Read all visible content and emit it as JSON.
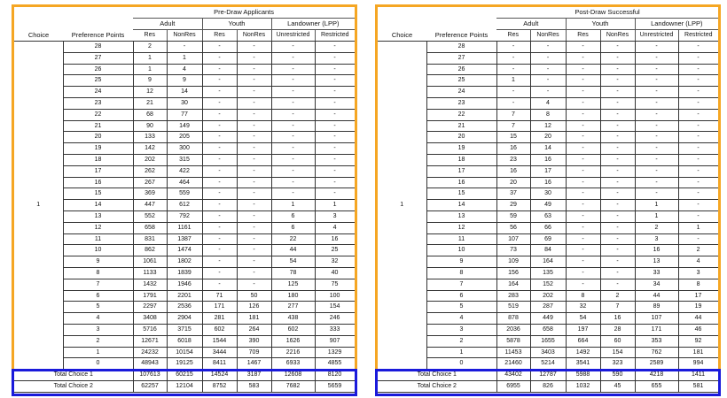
{
  "colors": {
    "frame": "#f5a623",
    "totals_box": "#1a1adb"
  },
  "headers": {
    "choice": "Choice",
    "points": "Preference Points",
    "adult": "Adult",
    "youth": "Youth",
    "landowner": "Landowner (LPP)",
    "res": "Res",
    "nonres": "NonRes",
    "unrestricted": "Unrestricted",
    "restricted": "Restricted"
  },
  "tables": [
    {
      "title": "Pre-Draw Applicants",
      "choice": "1",
      "rows": [
        [
          "28",
          "2",
          "-",
          "-",
          "-",
          "-",
          "-"
        ],
        [
          "27",
          "1",
          "1",
          "-",
          "-",
          "-",
          "-"
        ],
        [
          "26",
          "1",
          "4",
          "-",
          "-",
          "-",
          "-"
        ],
        [
          "25",
          "9",
          "9",
          "-",
          "-",
          "-",
          "-"
        ],
        [
          "24",
          "12",
          "14",
          "-",
          "-",
          "-",
          "-"
        ],
        [
          "23",
          "21",
          "30",
          "-",
          "-",
          "-",
          "-"
        ],
        [
          "22",
          "68",
          "77",
          "-",
          "-",
          "-",
          "-"
        ],
        [
          "21",
          "90",
          "149",
          "-",
          "-",
          "-",
          "-"
        ],
        [
          "20",
          "133",
          "205",
          "-",
          "-",
          "-",
          "-"
        ],
        [
          "19",
          "142",
          "300",
          "-",
          "-",
          "-",
          "-"
        ],
        [
          "18",
          "202",
          "315",
          "-",
          "-",
          "-",
          "-"
        ],
        [
          "17",
          "262",
          "422",
          "-",
          "-",
          "-",
          "-"
        ],
        [
          "16",
          "267",
          "464",
          "-",
          "-",
          "-",
          "-"
        ],
        [
          "15",
          "369",
          "559",
          "-",
          "-",
          "-",
          "-"
        ],
        [
          "14",
          "447",
          "612",
          "-",
          "-",
          "1",
          "1"
        ],
        [
          "13",
          "552",
          "792",
          "-",
          "-",
          "6",
          "3"
        ],
        [
          "12",
          "658",
          "1161",
          "-",
          "-",
          "6",
          "4"
        ],
        [
          "11",
          "831",
          "1387",
          "-",
          "-",
          "22",
          "16"
        ],
        [
          "10",
          "862",
          "1474",
          "-",
          "-",
          "44",
          "25"
        ],
        [
          "9",
          "1061",
          "1802",
          "-",
          "-",
          "54",
          "32"
        ],
        [
          "8",
          "1133",
          "1839",
          "-",
          "-",
          "78",
          "40"
        ],
        [
          "7",
          "1432",
          "1946",
          "-",
          "-",
          "125",
          "75"
        ],
        [
          "6",
          "1791",
          "2201",
          "71",
          "50",
          "180",
          "100"
        ],
        [
          "5",
          "2297",
          "2536",
          "171",
          "126",
          "277",
          "154"
        ],
        [
          "4",
          "3408",
          "2904",
          "281",
          "181",
          "438",
          "246"
        ],
        [
          "3",
          "5716",
          "3715",
          "602",
          "264",
          "602",
          "333"
        ],
        [
          "2",
          "12671",
          "6018",
          "1544",
          "390",
          "1626",
          "907"
        ],
        [
          "1",
          "24232",
          "10154",
          "3444",
          "709",
          "2216",
          "1329"
        ],
        [
          "0",
          "48943",
          "19125",
          "8411",
          "1467",
          "6933",
          "4855"
        ]
      ],
      "totals": [
        [
          "Total Choice 1",
          "107613",
          "60215",
          "14524",
          "3187",
          "12608",
          "8120"
        ],
        [
          "Total Choice 2",
          "62257",
          "12104",
          "8752",
          "583",
          "7682",
          "5659"
        ]
      ]
    },
    {
      "title": "Post-Draw Successful",
      "choice": "1",
      "rows": [
        [
          "28",
          "-",
          "-",
          "-",
          "-",
          "-",
          "-"
        ],
        [
          "27",
          "-",
          "-",
          "-",
          "-",
          "-",
          "-"
        ],
        [
          "26",
          "-",
          "-",
          "-",
          "-",
          "-",
          "-"
        ],
        [
          "25",
          "1",
          "-",
          "-",
          "-",
          "-",
          "-"
        ],
        [
          "24",
          "-",
          "-",
          "-",
          "-",
          "-",
          "-"
        ],
        [
          "23",
          "-",
          "4",
          "-",
          "-",
          "-",
          "-"
        ],
        [
          "22",
          "7",
          "8",
          "-",
          "-",
          "-",
          "-"
        ],
        [
          "21",
          "7",
          "12",
          "-",
          "-",
          "-",
          "-"
        ],
        [
          "20",
          "15",
          "20",
          "-",
          "-",
          "-",
          "-"
        ],
        [
          "19",
          "16",
          "14",
          "-",
          "-",
          "-",
          "-"
        ],
        [
          "18",
          "23",
          "16",
          "-",
          "-",
          "-",
          "-"
        ],
        [
          "17",
          "16",
          "17",
          "-",
          "-",
          "-",
          "-"
        ],
        [
          "16",
          "20",
          "16",
          "-",
          "-",
          "-",
          "-"
        ],
        [
          "15",
          "37",
          "30",
          "-",
          "-",
          "-",
          "-"
        ],
        [
          "14",
          "29",
          "49",
          "-",
          "-",
          "1",
          "-"
        ],
        [
          "13",
          "59",
          "63",
          "-",
          "-",
          "1",
          "-"
        ],
        [
          "12",
          "56",
          "66",
          "-",
          "-",
          "2",
          "1"
        ],
        [
          "11",
          "107",
          "69",
          "-",
          "-",
          "3",
          "-"
        ],
        [
          "10",
          "73",
          "84",
          "-",
          "-",
          "16",
          "2"
        ],
        [
          "9",
          "109",
          "164",
          "-",
          "-",
          "13",
          "4"
        ],
        [
          "8",
          "156",
          "135",
          "-",
          "-",
          "33",
          "3"
        ],
        [
          "7",
          "164",
          "152",
          "-",
          "-",
          "34",
          "8"
        ],
        [
          "6",
          "283",
          "202",
          "8",
          "2",
          "44",
          "17"
        ],
        [
          "5",
          "519",
          "287",
          "32",
          "7",
          "89",
          "19"
        ],
        [
          "4",
          "878",
          "449",
          "54",
          "16",
          "107",
          "44"
        ],
        [
          "3",
          "2036",
          "658",
          "197",
          "28",
          "171",
          "46"
        ],
        [
          "2",
          "5878",
          "1655",
          "664",
          "60",
          "353",
          "92"
        ],
        [
          "1",
          "11453",
          "3403",
          "1492",
          "154",
          "762",
          "181"
        ],
        [
          "0",
          "21460",
          "5214",
          "3541",
          "323",
          "2589",
          "994"
        ]
      ],
      "totals": [
        [
          "Total Choice 1",
          "43402",
          "12787",
          "5988",
          "590",
          "4218",
          "1411"
        ],
        [
          "Total Choice 2",
          "6955",
          "826",
          "1032",
          "45",
          "655",
          "581"
        ]
      ]
    }
  ]
}
